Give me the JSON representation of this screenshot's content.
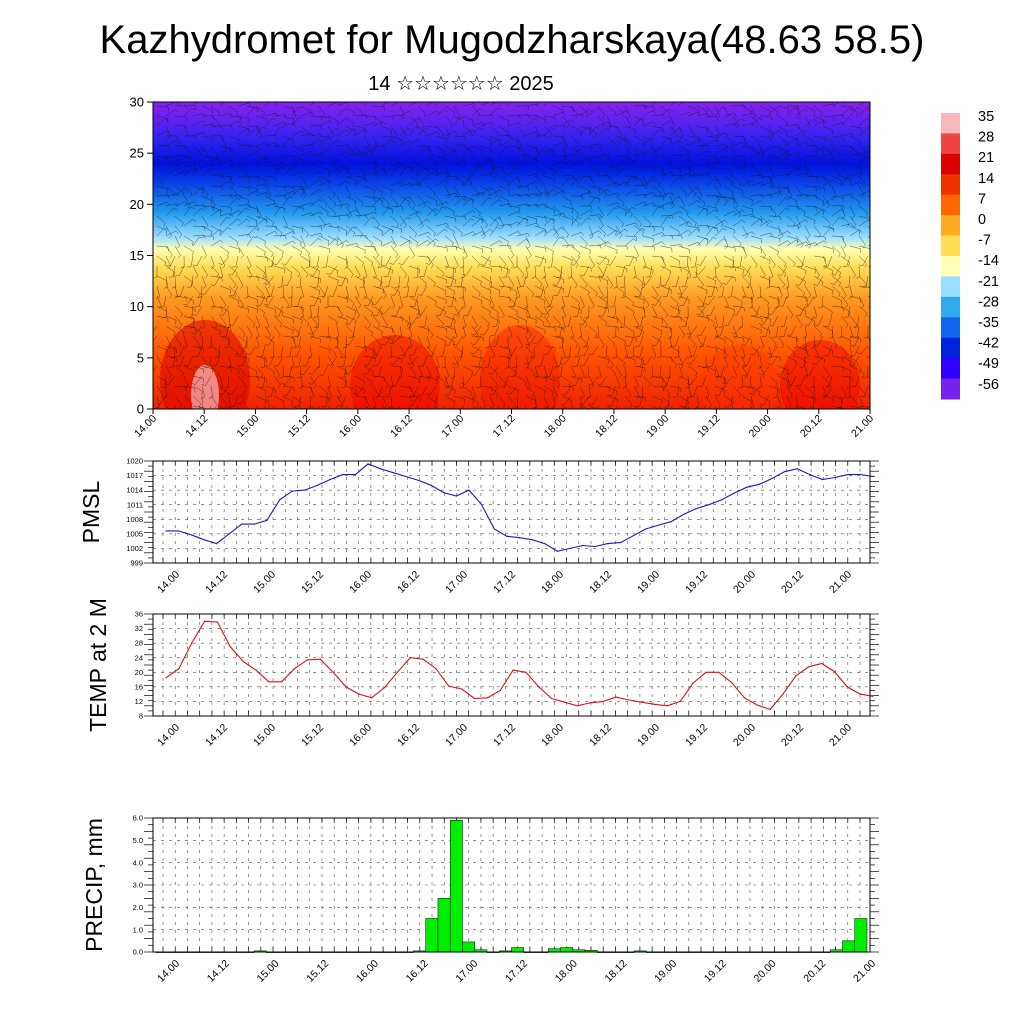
{
  "title": "Kazhydromet for Mugodzharskaya(48.63 58.5)",
  "subtitle": "14 ☆☆☆☆☆☆ 2025",
  "time_labels": [
    "14.00",
    "14.12",
    "15.00",
    "15.12",
    "16.00",
    "16.12",
    "17.00",
    "17.12",
    "18.00",
    "18.12",
    "19.00",
    "19.12",
    "20.00",
    "20.12",
    "21.00"
  ],
  "colors": {
    "pmsl_line": "#1a1acc",
    "temp_line": "#dd1111",
    "precip_bar": "#00ee00"
  },
  "chart_data": [
    {
      "type": "heatmap",
      "ylim": [
        0,
        30
      ],
      "y_ticks": [
        "0",
        "5",
        "10",
        "15",
        "20",
        "25",
        "30"
      ],
      "x_tick_labels": [
        "14.00",
        "14.12",
        "15.00",
        "15.12",
        "16.00",
        "16.12",
        "17.00",
        "17.12",
        "18.00",
        "18.12",
        "19.00",
        "19.12",
        "20.00",
        "20.12",
        "21.00"
      ],
      "colorbar": {
        "labels": [
          "35",
          "28",
          "21",
          "14",
          "7",
          "0",
          "-7",
          "-14",
          "-21",
          "-28",
          "-35",
          "-42",
          "-49",
          "-56"
        ],
        "colors": [
          "#f6b8bc",
          "#ee4444",
          "#dd0000",
          "#ee3300",
          "#ff6600",
          "#ffaa22",
          "#ffdd55",
          "#ffffbb",
          "#99ddff",
          "#33aaee",
          "#1166ee",
          "#0022dd",
          "#3300ff",
          "#7722ee"
        ]
      },
      "overlay": "wind barbs"
    },
    {
      "type": "line",
      "ylabel": "PMSL",
      "ylim": [
        999,
        1020
      ],
      "y_ticks": [
        "1020",
        "1017",
        "1014",
        "1011",
        "1008",
        "1005",
        "1002",
        "999"
      ],
      "x_tick_labels": [
        "14.00",
        "14.12",
        "15.00",
        "15.12",
        "16.00",
        "16.12",
        "17.00",
        "17.12",
        "18.00",
        "18.12",
        "19.00",
        "19.12",
        "20.00",
        "20.12",
        "21.00"
      ],
      "grid": true,
      "series": [
        {
          "values": [
            1005.6,
            1005.6,
            1004.8,
            1003.8,
            1003.0,
            1005.0,
            1007.0,
            1007.0,
            1007.8,
            1012.0,
            1013.8,
            1014.0,
            1015.0,
            1016.2,
            1017.2,
            1017.2,
            1019.4,
            1018.4,
            1017.6,
            1016.8,
            1016.0,
            1015.0,
            1013.5,
            1012.8,
            1014.0,
            1011.0,
            1006.0,
            1004.5,
            1004.2,
            1003.8,
            1003.0,
            1001.4,
            1002.0,
            1002.6,
            1002.4,
            1003.0,
            1003.2,
            1004.6,
            1006.0,
            1006.8,
            1007.5,
            1009.0,
            1010.2,
            1011.0,
            1012.0,
            1013.4,
            1014.6,
            1015.2,
            1016.4,
            1017.8,
            1018.4,
            1017.2,
            1016.2,
            1016.6,
            1017.2,
            1017.2,
            1016.8
          ]
        }
      ]
    },
    {
      "type": "line",
      "ylabel": "TEMP at 2 M",
      "ylim": [
        8,
        36
      ],
      "y_ticks": [
        "36",
        "32",
        "28",
        "24",
        "20",
        "16",
        "12",
        "8"
      ],
      "x_tick_labels": [
        "14.00",
        "14.12",
        "15.00",
        "15.12",
        "16.00",
        "16.12",
        "17.00",
        "17.12",
        "18.00",
        "18.12",
        "19.00",
        "19.12",
        "20.00",
        "20.12",
        "21.00"
      ],
      "grid": true,
      "series": [
        {
          "values": [
            18.5,
            21.0,
            28.0,
            34.0,
            33.8,
            27.0,
            23.0,
            20.6,
            17.4,
            17.4,
            21.0,
            23.4,
            23.6,
            20.0,
            16.0,
            14.0,
            13.0,
            15.8,
            20.0,
            24.0,
            23.6,
            21.0,
            16.2,
            15.4,
            12.8,
            13.0,
            15.0,
            20.6,
            20.0,
            16.0,
            12.8,
            11.8,
            10.8,
            11.6,
            12.0,
            13.2,
            12.4,
            11.8,
            11.2,
            10.8,
            12.0,
            17.0,
            20.0,
            20.0,
            17.2,
            13.0,
            11.0,
            9.8,
            14.0,
            19.0,
            21.5,
            22.4,
            20.2,
            16.0,
            14.0,
            13.4
          ]
        }
      ]
    },
    {
      "type": "bar",
      "ylabel": "PRECIP, mm",
      "ylim": [
        0,
        6
      ],
      "y_ticks": [
        "6.0",
        "5.0",
        "4.0",
        "3.0",
        "2.0",
        "1.0",
        "0.0"
      ],
      "x_tick_labels": [
        "14.00",
        "14.12",
        "15.00",
        "15.12",
        "16.00",
        "16.12",
        "17.00",
        "17.12",
        "18.00",
        "18.12",
        "19.00",
        "19.12",
        "20.00",
        "20.12",
        "21.00"
      ],
      "grid": true,
      "series": [
        {
          "values": [
            0,
            0,
            0,
            0,
            0,
            0,
            0,
            0,
            0.05,
            0,
            0,
            0,
            0,
            0,
            0,
            0,
            0,
            0,
            0,
            0,
            0,
            0.05,
            1.5,
            2.4,
            5.9,
            0.45,
            0.1,
            0,
            0.05,
            0.2,
            0,
            0,
            0.15,
            0.2,
            0.1,
            0.08,
            0,
            0,
            0,
            0.05,
            0,
            0,
            0,
            0,
            0,
            0,
            0,
            0,
            0,
            0,
            0,
            0,
            0,
            0,
            0,
            0.1,
            0.5,
            1.5
          ]
        }
      ]
    }
  ]
}
